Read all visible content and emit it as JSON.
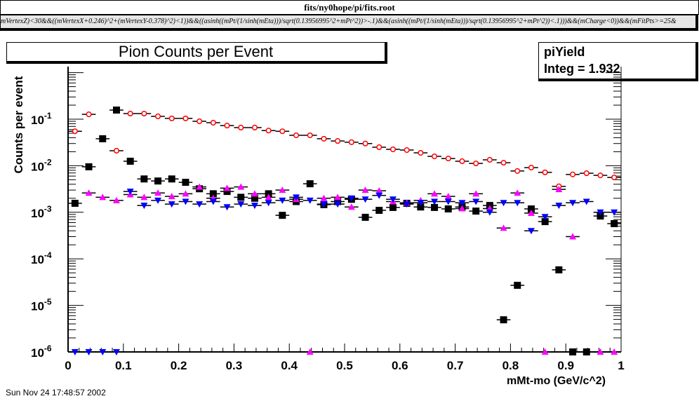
{
  "header": {
    "file_title": "fits/ny0hope/pi/fits.root",
    "formula": "mVertexZ)<30&&((mVertexX+0.246)^2+(mVertexY-0.378)^2)<1))&&((asinh((mPt/(1/sinh(mEta)))/sqrt(0.13956995^2+mPt^2))>-.1)&&(asinh((mPt/(1/sinh(mEta)))/sqrt(0.13956995^2+mPt^2))<.1)))&&(mCharge<0))&&(mFitPts>=25&"
  },
  "stats": {
    "name": "piYield",
    "integ_label": "Integ = ",
    "integ_value": "1.932"
  },
  "footer": {
    "date": "Sun Nov 24 17:48:57 2002"
  },
  "chart_data": {
    "type": "scatter",
    "title": "Pion Counts per Event",
    "xlabel": "mMt-mo (GeV/c^2)",
    "ylabel": "Counts per event",
    "xlim": [
      0,
      1
    ],
    "ylim": [
      1e-06,
      1.35
    ],
    "yscale": "log",
    "bin_width": 0.025,
    "x_ticks": [
      "0",
      "0.1",
      "0.2",
      "0.3",
      "0.4",
      "0.5",
      "0.6",
      "0.7",
      "0.8",
      "0.9",
      "1"
    ],
    "y_ticks": [
      {
        "base": "10",
        "exp": "-1",
        "value": 0.1
      },
      {
        "base": "10",
        "exp": "-2",
        "value": 0.01
      },
      {
        "base": "10",
        "exp": "-3",
        "value": 0.001
      },
      {
        "base": "10",
        "exp": "-4",
        "value": 0.0001
      },
      {
        "base": "10",
        "exp": "-5",
        "value": 1e-05
      },
      {
        "base": "10",
        "exp": "-6",
        "value": 1e-06
      }
    ],
    "series": [
      {
        "name": "red-open-circles",
        "color": "#ff0000",
        "marker": "open-circle",
        "values": [
          0.055,
          0.127,
          null,
          0.021,
          0.132,
          0.132,
          0.115,
          0.104,
          0.104,
          0.09,
          0.084,
          0.073,
          0.066,
          0.066,
          0.057,
          0.055,
          0.045,
          0.045,
          0.038,
          0.034,
          0.032,
          0.03,
          0.025,
          0.0225,
          0.0217,
          0.0189,
          0.0159,
          0.0143,
          0.0125,
          0.0112,
          0.0134,
          0.0116,
          0.0077,
          0.0091,
          0.0072,
          0.0036,
          0.0065,
          0.0069,
          0.0062,
          0.0056
        ]
      },
      {
        "name": "black-squares",
        "color": "#000000",
        "marker": "square",
        "values": [
          0.00156,
          0.0095,
          0.038,
          0.157,
          0.0125,
          0.0052,
          0.0047,
          0.0052,
          0.0044,
          0.0032,
          0.0025,
          0.0028,
          0.0021,
          0.002,
          0.0025,
          0.00086,
          0.0017,
          0.0041,
          0.00146,
          0.0017,
          0.0019,
          0.00078,
          0.0011,
          0.00127,
          0.00156,
          0.0013,
          0.00127,
          0.00118,
          0.0013,
          0.00106,
          0.0014,
          4.9e-06,
          2.7e-05,
          0.00118,
          0.00063,
          5.8e-05,
          1e-06,
          1e-06,
          0.00083,
          0.00057
        ]
      },
      {
        "name": "magenta-triangles-up",
        "color": "#ff00ff",
        "marker": "triangle-up",
        "values": [
          null,
          0.0026,
          0.0021,
          0.0018,
          0.0024,
          0.0021,
          0.0026,
          0.0022,
          0.0025,
          0.0035,
          0.002,
          0.0033,
          0.0035,
          0.0025,
          0.0021,
          0.003,
          0.0019,
          1e-06,
          0.002,
          0.0021,
          0.0013,
          0.003,
          0.0029,
          0.0017,
          0.0016,
          0.0018,
          0.0025,
          0.0022,
          0.0012,
          0.0025,
          0.0012,
          0.00046,
          0.0026,
          0.00096,
          1e-06,
          0.0031,
          0.0003,
          null,
          1e-06,
          1e-06
        ]
      },
      {
        "name": "blue-triangles-down",
        "color": "#0000ff",
        "marker": "triangle-down",
        "values": [
          1e-06,
          1e-06,
          1e-06,
          1e-06,
          0.0028,
          0.0014,
          0.0018,
          0.0015,
          0.0017,
          0.0015,
          0.0017,
          0.0013,
          0.0015,
          0.0014,
          0.0016,
          0.0018,
          0.0021,
          0.0018,
          0.0015,
          0.0015,
          0.002,
          0.0019,
          0.0023,
          0.0019,
          0.0015,
          0.0016,
          0.0017,
          0.0017,
          0.0016,
          0.0017,
          0.001,
          0.0016,
          0.0016,
          0.0004,
          0.0008,
          0.0014,
          0.0016,
          0.0017,
          0.001,
          0.001
        ]
      }
    ]
  }
}
